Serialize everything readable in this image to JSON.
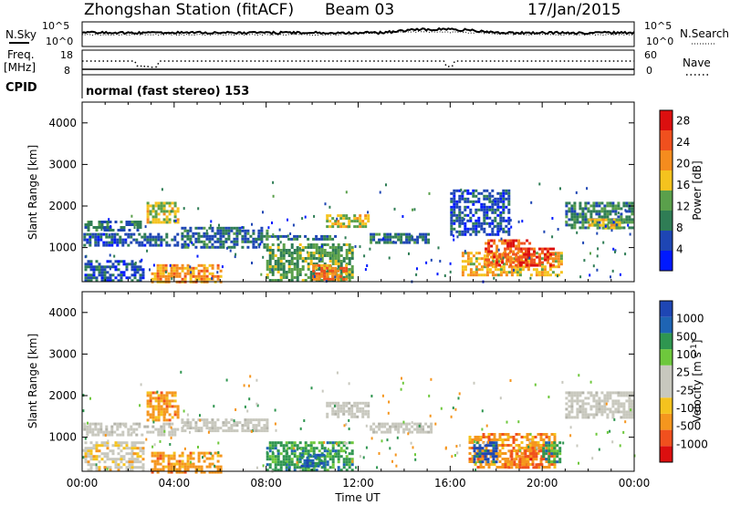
{
  "header": {
    "station": "Zhongshan Station (fitACF)",
    "beam": "Beam 03",
    "date": "17/Jan/2015"
  },
  "top_panels": {
    "nsky_label": "N.Sky",
    "nsky_ticks": [
      "10^5",
      "10^0"
    ],
    "nsearch_label": "N.Search",
    "nsearch_ticks": [
      "10^5",
      "10^0"
    ],
    "freq_label_line1": "Freq.",
    "freq_label_line2": "[MHz]",
    "freq_ticks": [
      "18",
      "8"
    ],
    "nave_label": "Nave",
    "nave_ticks": [
      "60",
      "0"
    ],
    "cpid_label": "CPID",
    "cpid_text": "normal (fast stereo) 153"
  },
  "colors": {
    "power_scale": [
      "#0019ff",
      "#1e46b4",
      "#2f7d55",
      "#5aa04b",
      "#f5c31e",
      "#f58c1e",
      "#f0501e",
      "#dc0f0f"
    ],
    "velocity_scale": [
      "#dc0f0f",
      "#f0501e",
      "#f5961e",
      "#f5c31e",
      "#c8c8be",
      "#c8c8be",
      "#6ec83c",
      "#2f9650",
      "#1e64b4",
      "#1e46b4"
    ],
    "ground_scatter": "#c8c8be"
  },
  "chart_data": [
    {
      "type": "heatmap",
      "title": "Power",
      "xlabel": "",
      "ylabel": "Slant Range [km]",
      "xlim": [
        "00:00",
        "00:00"
      ],
      "x_ticks": [
        "00:00",
        "04:00",
        "08:00",
        "12:00",
        "16:00",
        "20:00",
        "00:00"
      ],
      "ylim": [
        180,
        4500
      ],
      "y_ticks": [
        "1000",
        "2000",
        "3000",
        "4000"
      ],
      "colorbar": {
        "label": "Power [dB]",
        "ticks": [
          "4",
          "8",
          "12",
          "16",
          "20",
          "24",
          "28"
        ],
        "range": [
          0,
          30
        ]
      },
      "regions": [
        {
          "t0": 0.05,
          "t1": 4.2,
          "r0": 1050,
          "r1": 1350,
          "level": 6
        },
        {
          "t0": 0.1,
          "t1": 2.5,
          "r0": 1420,
          "r1": 1650,
          "level": 8
        },
        {
          "t0": 2.8,
          "t1": 4.2,
          "r0": 1600,
          "r1": 2100,
          "level": 16
        },
        {
          "t0": 0.1,
          "t1": 2.6,
          "r0": 180,
          "r1": 700,
          "level": 6
        },
        {
          "t0": 3.0,
          "t1": 6.0,
          "r0": 180,
          "r1": 600,
          "level": 20
        },
        {
          "t0": 4.3,
          "t1": 8.0,
          "r0": 1000,
          "r1": 1500,
          "level": 8
        },
        {
          "t0": 7.5,
          "t1": 11.0,
          "r0": 1200,
          "r1": 1300,
          "level": 8
        },
        {
          "t0": 10.6,
          "t1": 12.5,
          "r0": 1500,
          "r1": 1800,
          "level": 16
        },
        {
          "t0": 8.0,
          "t1": 11.8,
          "r0": 180,
          "r1": 1100,
          "level": 12
        },
        {
          "t0": 10.0,
          "t1": 11.5,
          "r0": 250,
          "r1": 600,
          "level": 22
        },
        {
          "t0": 12.5,
          "t1": 15.0,
          "r0": 1100,
          "r1": 1350,
          "level": 8
        },
        {
          "t0": 16.0,
          "t1": 18.5,
          "r0": 1300,
          "r1": 2400,
          "level": 6
        },
        {
          "t0": 16.5,
          "t1": 20.8,
          "r0": 350,
          "r1": 900,
          "level": 18
        },
        {
          "t0": 17.5,
          "t1": 19.5,
          "r0": 550,
          "r1": 1200,
          "level": 24
        },
        {
          "t0": 19.0,
          "t1": 20.5,
          "r0": 600,
          "r1": 1000,
          "level": 26
        },
        {
          "t0": 21.0,
          "t1": 23.9,
          "r0": 1450,
          "r1": 2100,
          "level": 10
        },
        {
          "t0": 22.0,
          "t1": 23.5,
          "r0": 1500,
          "r1": 1700,
          "level": 16
        }
      ]
    },
    {
      "type": "heatmap",
      "title": "Velocity",
      "xlabel": "Time UT",
      "ylabel": "Slant Range [km]",
      "xlim": [
        "00:00",
        "00:00"
      ],
      "x_ticks": [
        "00:00",
        "04:00",
        "08:00",
        "12:00",
        "16:00",
        "20:00",
        "00:00"
      ],
      "ylim": [
        180,
        4500
      ],
      "y_ticks": [
        "1000",
        "2000",
        "3000",
        "4000"
      ],
      "colorbar": {
        "label": "Velocity [m s^-1]",
        "ticks": [
          "1000",
          "500",
          "100",
          "25",
          "-25",
          "-100",
          "-500",
          "-1000"
        ]
      },
      "regions": [
        {
          "t0": 0.05,
          "t1": 4.2,
          "r0": 1050,
          "r1": 1350,
          "cls": "gs"
        },
        {
          "t0": 2.8,
          "t1": 4.2,
          "r0": 1400,
          "r1": 2100,
          "cls": "-100"
        },
        {
          "t0": 3.0,
          "t1": 6.0,
          "r0": 180,
          "r1": 650,
          "cls": "-100"
        },
        {
          "t0": 0.1,
          "t1": 2.6,
          "r0": 180,
          "r1": 900,
          "cls": "-25"
        },
        {
          "t0": 4.3,
          "t1": 8.0,
          "r0": 1150,
          "r1": 1450,
          "cls": "gs"
        },
        {
          "t0": 8.0,
          "t1": 11.8,
          "r0": 180,
          "r1": 900,
          "cls": "100"
        },
        {
          "t0": 9.5,
          "t1": 10.5,
          "r0": 300,
          "r1": 600,
          "cls": "500"
        },
        {
          "t0": 10.6,
          "t1": 12.5,
          "r0": 1500,
          "r1": 1850,
          "cls": "gs"
        },
        {
          "t0": 12.5,
          "t1": 15.2,
          "r0": 1100,
          "r1": 1350,
          "cls": "gs"
        },
        {
          "t0": 16.8,
          "t1": 20.6,
          "r0": 300,
          "r1": 1100,
          "cls": "-100"
        },
        {
          "t0": 17.0,
          "t1": 18.0,
          "r0": 400,
          "r1": 900,
          "cls": "1000"
        },
        {
          "t0": 18.5,
          "t1": 20.0,
          "r0": 300,
          "r1": 700,
          "cls": "-500"
        },
        {
          "t0": 20.0,
          "t1": 20.8,
          "r0": 400,
          "r1": 900,
          "cls": "100"
        },
        {
          "t0": 21.0,
          "t1": 23.9,
          "r0": 1450,
          "r1": 2100,
          "cls": "gs"
        }
      ]
    }
  ]
}
